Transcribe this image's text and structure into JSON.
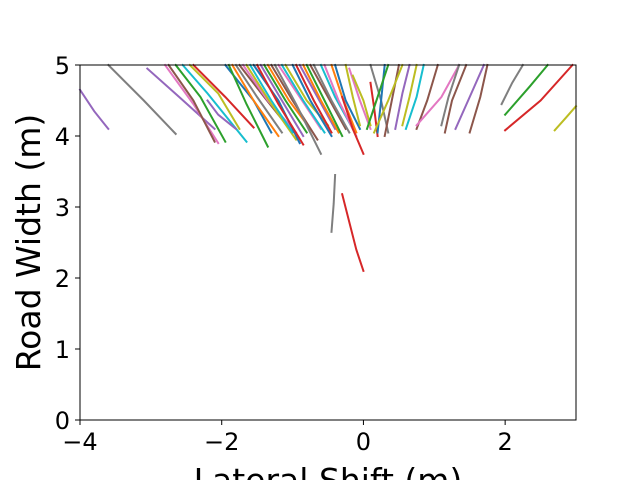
{
  "chart_data": {
    "type": "line",
    "title": "",
    "xlabel": "Lateral Shift (m)",
    "ylabel": "Road Width (m)",
    "xlim": [
      -4,
      3
    ],
    "ylim": [
      0,
      5
    ],
    "xticks": [
      -4,
      -2,
      0,
      2
    ],
    "xtick_labels": [
      "−4",
      "−2",
      "0",
      "2"
    ],
    "yticks": [
      0,
      1,
      2,
      3,
      4,
      5
    ],
    "ytick_labels": [
      "0",
      "1",
      "2",
      "3",
      "4",
      "5"
    ],
    "grid": false,
    "legend": "none",
    "palette": [
      "#1f77b4",
      "#ff7f0e",
      "#2ca02c",
      "#d62728",
      "#9467bd",
      "#8c564b",
      "#e377c2",
      "#7f7f7f",
      "#bcbd22",
      "#17becf"
    ],
    "series": [
      {
        "color": "#9467bd",
        "x": [
          -4.0,
          -3.8,
          -3.6
        ],
        "y": [
          4.65,
          4.35,
          4.1
        ]
      },
      {
        "color": "#7f7f7f",
        "x": [
          -3.6,
          -3.1,
          -2.65
        ],
        "y": [
          5.0,
          4.5,
          4.03
        ]
      },
      {
        "color": "#9467bd",
        "x": [
          -3.05,
          -2.6,
          -2.1
        ],
        "y": [
          4.95,
          4.55,
          4.1
        ]
      },
      {
        "color": "#e377c2",
        "x": [
          -2.8,
          -2.4,
          -2.05
        ],
        "y": [
          5.0,
          4.45,
          3.9
        ]
      },
      {
        "color": "#8c564b",
        "x": [
          -2.75,
          -2.4,
          -2.1
        ],
        "y": [
          5.0,
          4.5,
          3.92
        ]
      },
      {
        "color": "#2ca02c",
        "x": [
          -2.65,
          -2.3,
          -1.95
        ],
        "y": [
          5.0,
          4.55,
          3.92
        ]
      },
      {
        "color": "#17becf",
        "x": [
          -2.55,
          -2.2,
          -1.65
        ],
        "y": [
          5.0,
          4.6,
          3.92
        ]
      },
      {
        "color": "#bcbd22",
        "x": [
          -2.45,
          -2.05,
          -1.75
        ],
        "y": [
          5.0,
          4.6,
          4.1
        ]
      },
      {
        "color": "#d62728",
        "x": [
          -2.4,
          -1.95,
          -1.55
        ],
        "y": [
          5.0,
          4.55,
          4.12
        ]
      },
      {
        "color": "#9467bd",
        "x": [
          -2.2,
          -2.05,
          -1.8
        ],
        "y": [
          4.5,
          4.3,
          4.1
        ]
      },
      {
        "color": "#1f77b4",
        "x": [
          -1.95,
          -1.55,
          -1.3
        ],
        "y": [
          5.0,
          4.5,
          4.05
        ]
      },
      {
        "color": "#2ca02c",
        "x": [
          -1.9,
          -1.65,
          -1.35
        ],
        "y": [
          5.0,
          4.45,
          3.85
        ]
      },
      {
        "color": "#ff7f0e",
        "x": [
          -1.85,
          -1.55,
          -1.2
        ],
        "y": [
          5.0,
          4.5,
          4.0
        ]
      },
      {
        "color": "#7f7f7f",
        "x": [
          -1.8,
          -1.5,
          -1.15
        ],
        "y": [
          5.0,
          4.55,
          4.05
        ]
      },
      {
        "color": "#8c564b",
        "x": [
          -1.75,
          -1.4,
          -1.0
        ],
        "y": [
          5.0,
          4.55,
          4.05
        ]
      },
      {
        "color": "#e377c2",
        "x": [
          -1.7,
          -1.35,
          -0.95
        ],
        "y": [
          5.0,
          4.5,
          4.05
        ]
      },
      {
        "color": "#bcbd22",
        "x": [
          -1.65,
          -1.3,
          -0.95
        ],
        "y": [
          5.0,
          4.45,
          3.95
        ]
      },
      {
        "color": "#17becf",
        "x": [
          -1.6,
          -1.3,
          -1.0
        ],
        "y": [
          5.0,
          4.5,
          4.05
        ]
      },
      {
        "color": "#1f77b4",
        "x": [
          -1.55,
          -1.2,
          -0.9
        ],
        "y": [
          5.0,
          4.5,
          3.9
        ]
      },
      {
        "color": "#d62728",
        "x": [
          -1.5,
          -1.2,
          -0.85
        ],
        "y": [
          5.0,
          4.45,
          3.88
        ]
      },
      {
        "color": "#9467bd",
        "x": [
          -1.45,
          -1.15,
          -0.85
        ],
        "y": [
          5.0,
          4.5,
          4.0
        ]
      },
      {
        "color": "#2ca02c",
        "x": [
          -1.4,
          -1.1,
          -0.8
        ],
        "y": [
          5.0,
          4.5,
          4.05
        ]
      },
      {
        "color": "#ff7f0e",
        "x": [
          -1.35,
          -1.05,
          -0.75
        ],
        "y": [
          5.0,
          4.5,
          4.1
        ]
      },
      {
        "color": "#8c564b",
        "x": [
          -1.3,
          -1.0,
          -0.65
        ],
        "y": [
          5.0,
          4.5,
          3.95
        ]
      },
      {
        "color": "#7f7f7f",
        "x": [
          -1.25,
          -0.95,
          -0.6
        ],
        "y": [
          5.0,
          4.45,
          3.75
        ]
      },
      {
        "color": "#e377c2",
        "x": [
          -1.2,
          -0.9,
          -0.6
        ],
        "y": [
          5.0,
          4.55,
          4.1
        ]
      },
      {
        "color": "#17becf",
        "x": [
          -1.15,
          -0.85,
          -0.55
        ],
        "y": [
          5.0,
          4.5,
          4.05
        ]
      },
      {
        "color": "#bcbd22",
        "x": [
          -1.1,
          -0.8,
          -0.5
        ],
        "y": [
          5.0,
          4.5,
          4.15
        ]
      },
      {
        "color": "#1f77b4",
        "x": [
          -1.0,
          -0.75,
          -0.45
        ],
        "y": [
          5.0,
          4.5,
          4.0
        ]
      },
      {
        "color": "#d62728",
        "x": [
          -0.95,
          -0.7,
          -0.45
        ],
        "y": [
          5.0,
          4.5,
          4.05
        ]
      },
      {
        "color": "#9467bd",
        "x": [
          -0.9,
          -0.65,
          -0.4
        ],
        "y": [
          5.0,
          4.55,
          4.1
        ]
      },
      {
        "color": "#ff7f0e",
        "x": [
          -0.85,
          -0.6,
          -0.35
        ],
        "y": [
          5.0,
          4.5,
          4.05
        ]
      },
      {
        "color": "#2ca02c",
        "x": [
          -0.8,
          -0.55,
          -0.3
        ],
        "y": [
          5.0,
          4.5,
          4.0
        ]
      },
      {
        "color": "#8c564b",
        "x": [
          -0.75,
          -0.5,
          -0.25
        ],
        "y": [
          5.0,
          4.55,
          4.1
        ]
      },
      {
        "color": "#7f7f7f",
        "x": [
          -0.7,
          -0.45,
          -0.2
        ],
        "y": [
          5.0,
          4.5,
          4.05
        ]
      },
      {
        "color": "#17becf",
        "x": [
          -0.6,
          -0.4,
          -0.15
        ],
        "y": [
          5.0,
          4.55,
          4.1
        ]
      },
      {
        "color": "#e377c2",
        "x": [
          -0.55,
          -0.35,
          -0.1
        ],
        "y": [
          5.0,
          4.5,
          4.0
        ]
      },
      {
        "color": "#ff7f0e",
        "x": [
          -0.45,
          -0.3,
          -0.1
        ],
        "y": [
          5.0,
          4.55,
          4.05
        ]
      },
      {
        "color": "#1f77b4",
        "x": [
          -0.4,
          -0.25,
          -0.05
        ],
        "y": [
          5.0,
          4.5,
          4.1
        ]
      },
      {
        "color": "#bcbd22",
        "x": [
          -0.25,
          -0.15,
          -0.05
        ],
        "y": [
          5.0,
          4.55,
          4.15
        ]
      },
      {
        "color": "#d62728",
        "x": [
          -0.3,
          -0.15,
          0.0
        ],
        "y": [
          4.55,
          4.1,
          3.75
        ]
      },
      {
        "color": "#e377c2",
        "x": [
          -0.2,
          -0.05,
          0.1
        ],
        "y": [
          4.95,
          4.5,
          4.1
        ]
      },
      {
        "color": "#bcbd22",
        "x": [
          -0.15,
          0.0,
          0.1
        ],
        "y": [
          4.85,
          4.5,
          4.15
        ]
      },
      {
        "color": "#d62728",
        "x": [
          0.1,
          0.15,
          0.2
        ],
        "y": [
          4.75,
          4.4,
          4.0
        ]
      },
      {
        "color": "#7f7f7f",
        "x": [
          0.1,
          0.25,
          0.35
        ],
        "y": [
          5.0,
          4.5,
          4.05
        ]
      },
      {
        "color": "#1f77b4",
        "x": [
          0.3,
          0.25,
          0.2
        ],
        "y": [
          5.0,
          4.5,
          4.05
        ]
      },
      {
        "color": "#8c564b",
        "x": [
          0.5,
          0.4,
          0.3
        ],
        "y": [
          5.0,
          4.5,
          4.0
        ]
      },
      {
        "color": "#9467bd",
        "x": [
          0.65,
          0.55,
          0.45
        ],
        "y": [
          5.0,
          4.6,
          4.1
        ]
      },
      {
        "color": "#bcbd22",
        "x": [
          0.75,
          0.65,
          0.55
        ],
        "y": [
          5.0,
          4.55,
          4.15
        ]
      },
      {
        "color": "#17becf",
        "x": [
          0.85,
          0.75,
          0.6
        ],
        "y": [
          5.0,
          4.55,
          4.1
        ]
      },
      {
        "color": "#8c564b",
        "x": [
          1.05,
          0.9,
          0.75
        ],
        "y": [
          5.0,
          4.5,
          4.1
        ]
      },
      {
        "color": "#e377c2",
        "x": [
          1.35,
          1.1,
          0.75
        ],
        "y": [
          5.0,
          4.55,
          4.15
        ]
      },
      {
        "color": "#bcbd22",
        "x": [
          0.55,
          0.35,
          0.15
        ],
        "y": [
          5.0,
          4.5,
          4.05
        ]
      },
      {
        "color": "#2ca02c",
        "x": [
          0.35,
          0.2,
          0.05
        ],
        "y": [
          5.0,
          4.55,
          4.1
        ]
      },
      {
        "color": "#7f7f7f",
        "x": [
          1.35,
          1.2,
          1.1
        ],
        "y": [
          5.0,
          4.55,
          4.15
        ]
      },
      {
        "color": "#8c564b",
        "x": [
          1.45,
          1.25,
          1.15
        ],
        "y": [
          5.0,
          4.5,
          4.05
        ]
      },
      {
        "color": "#9467bd",
        "x": [
          1.7,
          1.5,
          1.3
        ],
        "y": [
          5.0,
          4.55,
          4.1
        ]
      },
      {
        "color": "#8c564b",
        "x": [
          1.75,
          1.65,
          1.5
        ],
        "y": [
          5.0,
          4.55,
          4.05
        ]
      },
      {
        "color": "#7f7f7f",
        "x": [
          2.25,
          2.1,
          1.95
        ],
        "y": [
          5.0,
          4.75,
          4.45
        ]
      },
      {
        "color": "#2ca02c",
        "x": [
          2.6,
          2.35,
          2.0
        ],
        "y": [
          5.0,
          4.7,
          4.3
        ]
      },
      {
        "color": "#d62728",
        "x": [
          2.95,
          2.5,
          2.0
        ],
        "y": [
          5.0,
          4.5,
          4.08
        ]
      },
      {
        "color": "#bcbd22",
        "x": [
          3.0,
          2.85,
          2.7
        ],
        "y": [
          4.42,
          4.25,
          4.08
        ]
      },
      {
        "color": "#7f7f7f",
        "x": [
          -0.4,
          -0.42,
          -0.45
        ],
        "y": [
          3.45,
          3.05,
          2.65
        ]
      },
      {
        "color": "#d62728",
        "x": [
          -0.3,
          -0.1,
          0.0
        ],
        "y": [
          3.18,
          2.4,
          2.1
        ]
      }
    ]
  }
}
